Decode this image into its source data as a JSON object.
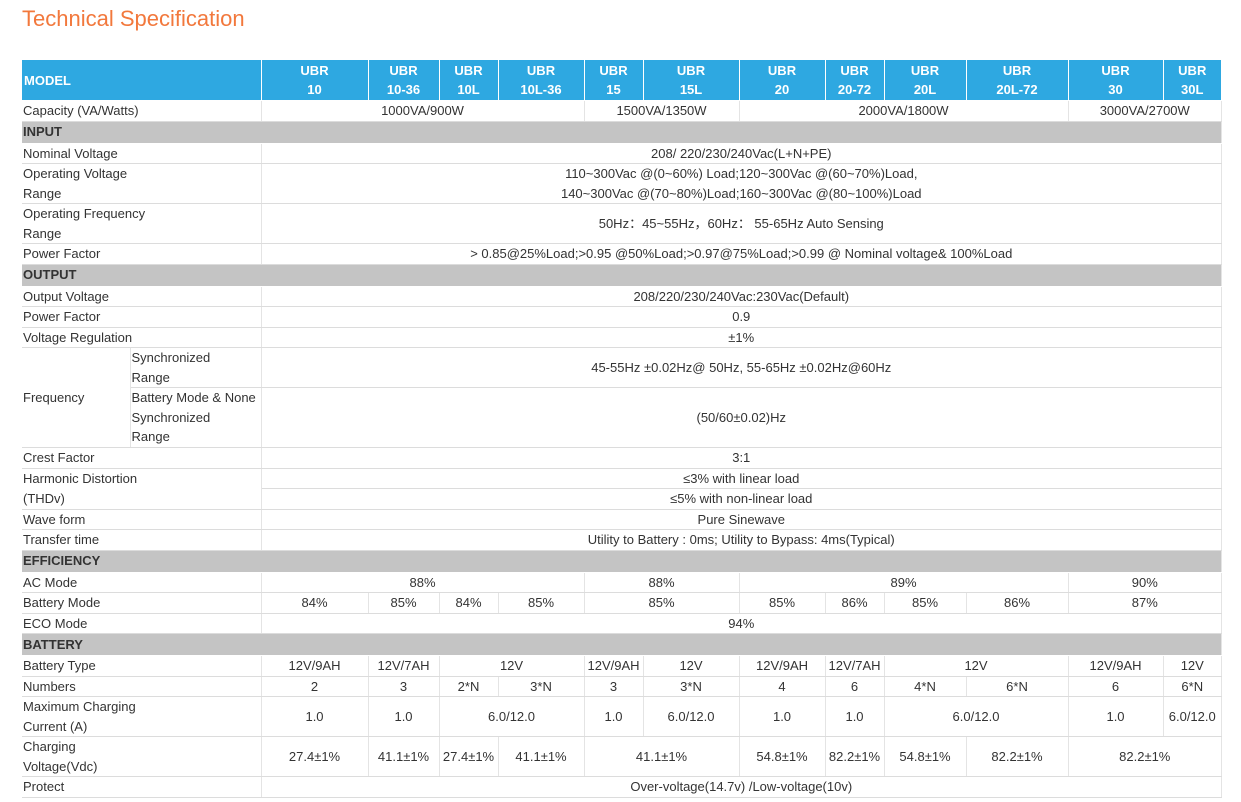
{
  "title": "Technical Specification",
  "header": {
    "model": "MODEL",
    "models": [
      "UBR\n10",
      "UBR\n10-36",
      "UBR\n10L",
      "UBR\n10L-36",
      "UBR\n15",
      "UBR\n15L",
      "UBR\n20",
      "UBR\n20-72",
      "UBR\n20L",
      "UBR\n20L-72",
      "UBR\n30",
      "UBR\n30L"
    ]
  },
  "capacity": {
    "label": "Capacity (VA/Watts)",
    "values": [
      "1000VA/900W",
      "1500VA/1350W",
      "2000VA/1800W",
      "3000VA/2700W"
    ]
  },
  "input": {
    "section": "INPUT",
    "nominal_voltage": {
      "label": "Nominal Voltage",
      "value": "208/ 220/230/240Vac(L+N+PE)"
    },
    "operating_voltage": {
      "label": "Operating Voltage\nRange",
      "value": "110~300Vac @(0~60%) Load;120~300Vac @(60~70%)Load,\n140~300Vac @(70~80%)Load;160~300Vac @(80~100%)Load"
    },
    "operating_frequency": {
      "label": "Operating Frequency\n Range",
      "value": "50Hz：45~55Hz，60Hz： 55-65Hz  Auto Sensing"
    },
    "power_factor": {
      "label": "Power Factor",
      "value": "> 0.85@25%Load;>0.95 @50%Load;>0.97@75%Load;>0.99 @ Nominal voltage& 100%Load"
    }
  },
  "output": {
    "section": "OUTPUT",
    "output_voltage": {
      "label": "Output Voltage",
      "value": "208/220/230/240Vac:230Vac(Default)"
    },
    "power_factor": {
      "label": "Power Factor",
      "value": "0.9"
    },
    "voltage_regulation": {
      "label": "Voltage Regulation",
      "value": "±1%"
    },
    "frequency": {
      "label": "Frequency",
      "sync_label": "Synchronized\n Range",
      "sync_value": "45-55Hz ±0.02Hz@ 50Hz, 55-65Hz ±0.02Hz@60Hz",
      "battery_label": "Battery Mode & None\nSynchronized\n Range",
      "battery_value": "(50/60±0.02)Hz"
    },
    "crest_factor": {
      "label": "Crest Factor",
      "value": "3:1"
    },
    "harmonic": {
      "label": "Harmonic Distortion\n (THDv)",
      "linear": "≤3% with linear load",
      "nonlinear": "≤5% with non-linear load"
    },
    "wave_form": {
      "label": "Wave form",
      "value": "Pure Sinewave"
    },
    "transfer_time": {
      "label": "Transfer time",
      "value": "Utility to Battery : 0ms; Utility to Bypass: 4ms(Typical)"
    }
  },
  "efficiency": {
    "section": "EFFICIENCY",
    "ac_mode": {
      "label": "AC Mode",
      "values": [
        "88%",
        "88%",
        "89%",
        "90%"
      ]
    },
    "battery_mode": {
      "label": "Battery Mode",
      "values": [
        "84%",
        "85%",
        "84%",
        "85%",
        "85%",
        "85%",
        "86%",
        "85%",
        "86%",
        "87%"
      ]
    },
    "eco_mode": {
      "label": "ECO Mode",
      "value": "94%"
    }
  },
  "battery": {
    "section": "BATTERY",
    "type": {
      "label": "Battery Type",
      "values": [
        "12V/9AH",
        "12V/7AH",
        "12V",
        "12V/9AH",
        "12V",
        "12V/9AH",
        "12V/7AH",
        "12V",
        "12V/9AH",
        "12V"
      ]
    },
    "numbers": {
      "label": "Numbers",
      "values": [
        "2",
        "3",
        "2*N",
        "3*N",
        "3",
        "3*N",
        "4",
        "6",
        "4*N",
        "6*N",
        "6",
        "6*N"
      ]
    },
    "max_charging": {
      "label": "Maximum Charging\nCurrent (A)",
      "values": [
        "1.0",
        "1.0",
        "6.0/12.0",
        "1.0",
        "6.0/12.0",
        "1.0",
        "1.0",
        "6.0/12.0",
        "1.0",
        "6.0/12.0"
      ]
    },
    "charging_voltage": {
      "label": "Charging\n Voltage(Vdc)",
      "values": [
        "27.4±1%",
        "41.1±1%",
        "27.4±1%",
        "41.1±1%",
        "41.1±1%",
        "54.8±1%",
        "82.2±1%",
        "54.8±1%",
        "82.2±1%",
        "82.2±1%"
      ]
    },
    "protect": {
      "label": "Protect",
      "value": "Over-voltage(14.7v) /Low-voltage(10v)"
    }
  }
}
